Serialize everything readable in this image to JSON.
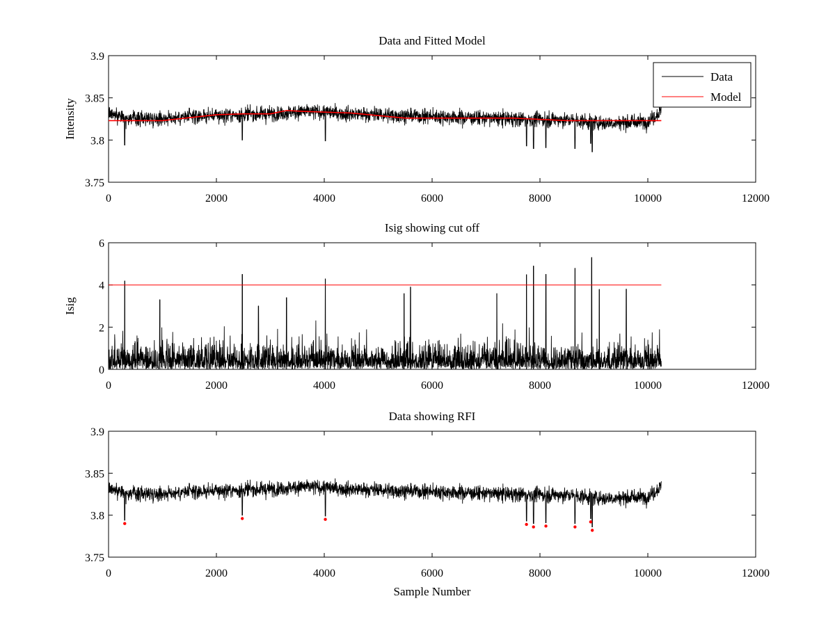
{
  "chart_data": [
    {
      "type": "line",
      "title": "Data and Fitted Model",
      "xlabel": "",
      "ylabel": "Intensity",
      "xlim": [
        0,
        12000
      ],
      "ylim": [
        3.75,
        3.9
      ],
      "xticks": [
        "0",
        "2000",
        "4000",
        "6000",
        "8000",
        "10000",
        "12000"
      ],
      "yticks": [
        "3.75",
        "3.8",
        "3.85",
        "3.9"
      ],
      "grid": false,
      "legend_position": "top-right",
      "series": [
        {
          "name": "Data",
          "color": "#000000",
          "x_range": [
            0,
            10250
          ],
          "trend": [
            [
              0,
              3.833
            ],
            [
              300,
              3.826
            ],
            [
              1000,
              3.826
            ],
            [
              2000,
              3.829
            ],
            [
              3000,
              3.831
            ],
            [
              3600,
              3.834
            ],
            [
              4500,
              3.831
            ],
            [
              5500,
              3.829
            ],
            [
              6500,
              3.827
            ],
            [
              7500,
              3.825
            ],
            [
              8500,
              3.824
            ],
            [
              9200,
              3.82
            ],
            [
              10000,
              3.822
            ],
            [
              10250,
              3.834
            ]
          ],
          "noise_range": [
            3.78,
            3.858
          ]
        },
        {
          "name": "Model",
          "color": "#ff0000",
          "points": [
            [
              0,
              3.823
            ],
            [
              1000,
              3.823
            ],
            [
              2000,
              3.83
            ],
            [
              2500,
              3.831
            ],
            [
              3000,
              3.831
            ],
            [
              3300,
              3.835
            ],
            [
              3600,
              3.834
            ],
            [
              4500,
              3.832
            ],
            [
              5500,
              3.826
            ],
            [
              6500,
              3.826
            ],
            [
              7500,
              3.826
            ],
            [
              8500,
              3.823
            ],
            [
              10250,
              3.823
            ]
          ]
        }
      ]
    },
    {
      "type": "line",
      "title": "Isig showing cut off",
      "xlabel": "",
      "ylabel": "Isig",
      "xlim": [
        0,
        12000
      ],
      "ylim": [
        0,
        6
      ],
      "xticks": [
        "0",
        "2000",
        "4000",
        "6000",
        "8000",
        "10000",
        "12000"
      ],
      "yticks": [
        "0",
        "2",
        "4",
        "6"
      ],
      "grid": false,
      "series": [
        {
          "color": "#000000",
          "x_range": [
            0,
            10250
          ],
          "typical_range": [
            0,
            2.5
          ],
          "spikes": [
            [
              300,
              4.2
            ],
            [
              950,
              3.3
            ],
            [
              2480,
              4.5
            ],
            [
              2780,
              3.0
            ],
            [
              3300,
              3.4
            ],
            [
              4020,
              4.3
            ],
            [
              5480,
              3.6
            ],
            [
              5600,
              3.9
            ],
            [
              7200,
              3.6
            ],
            [
              7750,
              4.5
            ],
            [
              7880,
              4.9
            ],
            [
              8110,
              4.5
            ],
            [
              8650,
              4.8
            ],
            [
              8960,
              5.3
            ],
            [
              9100,
              3.8
            ],
            [
              9600,
              3.8
            ]
          ]
        },
        {
          "color": "#ff0000",
          "points": [
            [
              0,
              4
            ],
            [
              10250,
              4
            ]
          ]
        }
      ]
    },
    {
      "type": "line",
      "title": "Data showing RFI",
      "xlabel": "Sample Number",
      "ylabel": "",
      "xlim": [
        0,
        12000
      ],
      "ylim": [
        3.75,
        3.9
      ],
      "xticks": [
        "0",
        "2000",
        "4000",
        "6000",
        "8000",
        "10000",
        "12000"
      ],
      "yticks": [
        "3.75",
        "3.8",
        "3.85",
        "3.9"
      ],
      "grid": false,
      "series": [
        {
          "color": "#000000",
          "x_range": [
            0,
            10250
          ],
          "trend": [
            [
              0,
              3.833
            ],
            [
              300,
              3.826
            ],
            [
              1000,
              3.826
            ],
            [
              2000,
              3.829
            ],
            [
              3000,
              3.831
            ],
            [
              3600,
              3.834
            ],
            [
              4500,
              3.831
            ],
            [
              5500,
              3.829
            ],
            [
              6500,
              3.827
            ],
            [
              7500,
              3.825
            ],
            [
              8500,
              3.824
            ],
            [
              9200,
              3.82
            ],
            [
              10000,
              3.822
            ],
            [
              10250,
              3.834
            ]
          ],
          "noise_range": [
            3.78,
            3.858
          ]
        },
        {
          "color": "#ff0000",
          "marker": "dot",
          "points": [
            [
              300,
              3.79
            ],
            [
              2480,
              3.796
            ],
            [
              4020,
              3.795
            ],
            [
              7750,
              3.789
            ],
            [
              7880,
              3.786
            ],
            [
              8110,
              3.787
            ],
            [
              8650,
              3.786
            ],
            [
              8940,
              3.792
            ],
            [
              8970,
              3.782
            ]
          ]
        }
      ]
    }
  ]
}
